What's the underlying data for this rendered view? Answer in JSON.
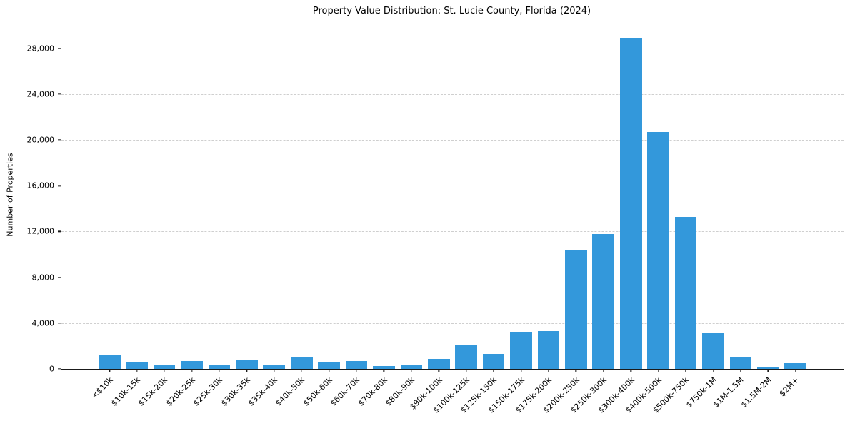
{
  "chart_data": {
    "type": "bar",
    "title": "Property Value Distribution: St. Lucie County, Florida (2024)",
    "xlabel": "",
    "ylabel": "Number of Properties",
    "categories": [
      "<$10k",
      "$10k-15k",
      "$15k-20k",
      "$20k-25k",
      "$25k-30k",
      "$30k-35k",
      "$35k-40k",
      "$40k-50k",
      "$50k-60k",
      "$60k-70k",
      "$70k-80k",
      "$80k-90k",
      "$90k-100k",
      "$100k-125k",
      "$125k-150k",
      "$150k-175k",
      "$175k-200k",
      "$200k-250k",
      "$250k-300k",
      "$300k-400k",
      "$400k-500k",
      "$500k-750k",
      "$750k-1M",
      "$1M-1.5M",
      "$1.5M-2M",
      "$2M+"
    ],
    "values": [
      1250,
      600,
      300,
      700,
      400,
      800,
      400,
      1050,
      600,
      700,
      250,
      400,
      850,
      2100,
      1300,
      3250,
      3300,
      10350,
      11800,
      28900,
      20700,
      13250,
      3100,
      1000,
      200,
      500
    ],
    "ylim": [
      0,
      30350
    ],
    "yticks": [
      0,
      4000,
      8000,
      12000,
      16000,
      20000,
      24000,
      28000
    ],
    "ytick_labels": [
      "0",
      "4,000",
      "8,000",
      "12,000",
      "16,000",
      "20,000",
      "24,000",
      "28,000"
    ],
    "grid": "horizontal-dashed",
    "legend_position": "none",
    "bar_color": "#3398db",
    "grid_color": "#cfcfcf",
    "axis_color": "#1a1a1a"
  }
}
